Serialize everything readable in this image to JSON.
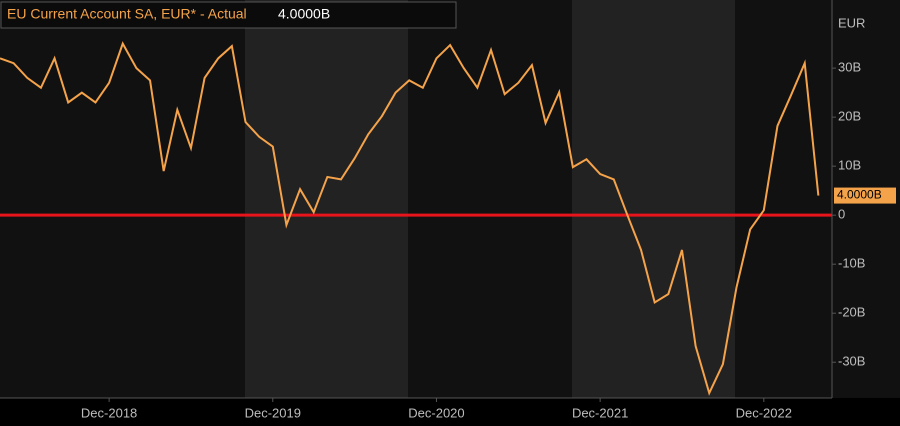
{
  "chart_data": {
    "type": "line",
    "title": "EU Current Account SA, EUR* - Actual",
    "title_value": "4.0000B",
    "y_unit": "EUR",
    "x": [
      "2018-04",
      "2018-05",
      "2018-06",
      "2018-07",
      "2018-08",
      "2018-09",
      "2018-10",
      "2018-11",
      "2018-12",
      "2019-01",
      "2019-02",
      "2019-03",
      "2019-04",
      "2019-05",
      "2019-06",
      "2019-07",
      "2019-08",
      "2019-09",
      "2019-10",
      "2019-11",
      "2019-12",
      "2020-01",
      "2020-02",
      "2020-03",
      "2020-04",
      "2020-05",
      "2020-06",
      "2020-07",
      "2020-08",
      "2020-09",
      "2020-10",
      "2020-11",
      "2020-12",
      "2021-01",
      "2021-02",
      "2021-03",
      "2021-04",
      "2021-05",
      "2021-06",
      "2021-07",
      "2021-08",
      "2021-09",
      "2021-10",
      "2021-11",
      "2021-12",
      "2022-01",
      "2022-02",
      "2022-03",
      "2022-04",
      "2022-05",
      "2022-06",
      "2022-07",
      "2022-08",
      "2022-09",
      "2022-10",
      "2022-11",
      "2022-12",
      "2023-01",
      "2023-02",
      "2023-03",
      "2023-04"
    ],
    "series": [
      {
        "name": "EU Current Account SA, EUR* - Actual",
        "color": "#f5a34a",
        "values": [
          32,
          31,
          28,
          26,
          32,
          23,
          25,
          23,
          27,
          35,
          30,
          27.5,
          9,
          21.5,
          13.7,
          28,
          32,
          34.5,
          19,
          16,
          14,
          -2,
          5.3,
          0.6,
          7.8,
          7.3,
          11.6,
          16.5,
          20.2,
          25,
          27.5,
          26,
          32,
          34.7,
          30,
          26,
          33.7,
          24.7,
          27,
          30.6,
          18.8,
          25.1,
          9.8,
          11.4,
          8.4,
          7.3,
          0,
          -7.1,
          -17.8,
          -16.1,
          -7.1,
          -26.7,
          -36.3,
          -30.4,
          -14.7,
          -2.9,
          1,
          18.2,
          24.5,
          31,
          4
        ],
        "last_value_label": "4.0000B"
      }
    ],
    "xlim": [
      "2018-04",
      "2023-05"
    ],
    "xticks": [
      {
        "value": "2018-12",
        "label": "Dec-2018"
      },
      {
        "value": "2019-12",
        "label": "Dec-2019"
      },
      {
        "value": "2020-12",
        "label": "Dec-2020"
      },
      {
        "value": "2021-12",
        "label": "Dec-2021"
      },
      {
        "value": "2022-12",
        "label": "Dec-2022"
      }
    ],
    "ylim": [
      -37.3,
      43.9
    ],
    "yticks": [
      {
        "value": -30,
        "label": "-30B"
      },
      {
        "value": -20,
        "label": "-20B"
      },
      {
        "value": -10,
        "label": "-10B"
      },
      0,
      {
        "value": 10,
        "label": "10B"
      },
      {
        "value": 20,
        "label": "20B"
      },
      {
        "value": 30,
        "label": "30B"
      }
    ],
    "reference_line": {
      "value": 0,
      "color": "#e8141c"
    },
    "grid": false
  }
}
